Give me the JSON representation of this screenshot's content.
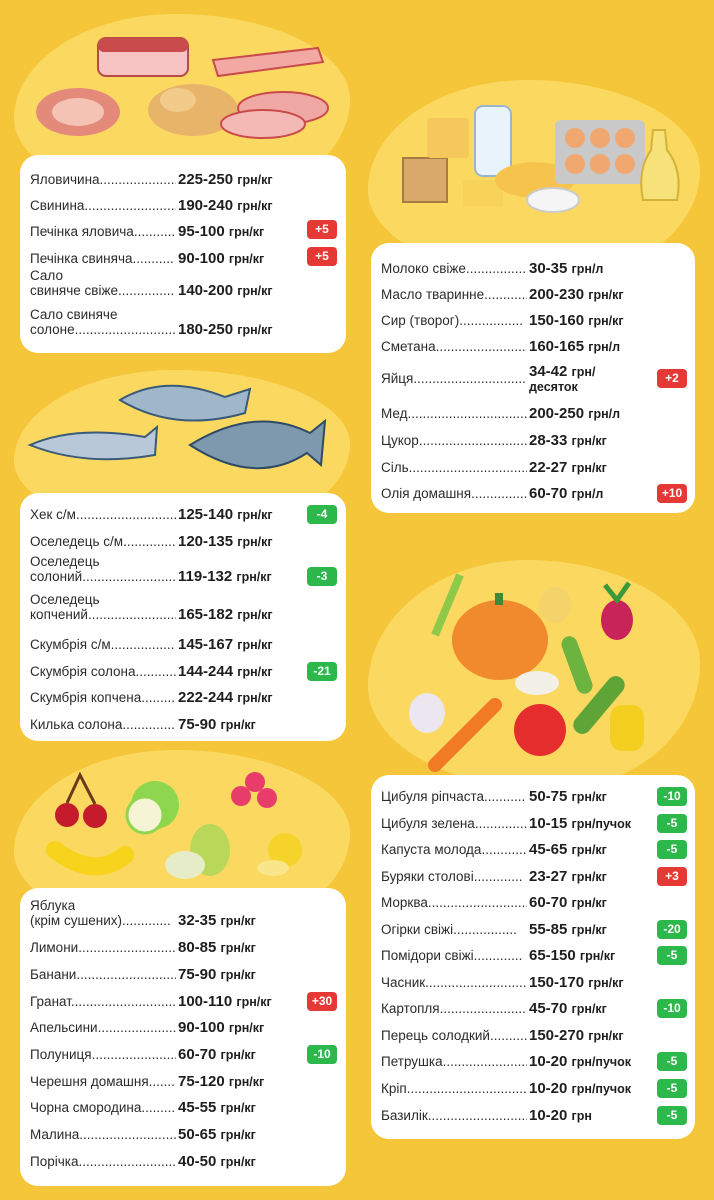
{
  "colors": {
    "background": "#f5c63a",
    "blob": "#fbd961",
    "badge_up": "#e53935",
    "badge_down": "#2db84b"
  },
  "meat": [
    {
      "name": "Яловичина",
      "price": "225-250",
      "unit": "грн/кг",
      "badge": ""
    },
    {
      "name": "Свинина",
      "price": "190-240",
      "unit": "грн/кг",
      "badge": ""
    },
    {
      "name": "Печінка яловича",
      "price": "95-100",
      "unit": "грн/кг",
      "badge": "+5"
    },
    {
      "name": "Печінка свиняча",
      "price": "90-100",
      "unit": "грн/кг",
      "badge": "+5"
    },
    {
      "name_line1": "Сало",
      "name": "свиняче свіже",
      "price": "140-200",
      "unit": "грн/кг",
      "badge": ""
    },
    {
      "name_line1": "Сало свиняче",
      "name": "солоне",
      "price": "180-250",
      "unit": "грн/кг",
      "badge": ""
    }
  ],
  "fish": [
    {
      "name": "Хек с/м",
      "price": "125-140",
      "unit": "грн/кг",
      "badge": "-4"
    },
    {
      "name": "Оселедець с/м",
      "price": "120-135",
      "unit": "грн/кг",
      "badge": ""
    },
    {
      "name_line1": "Оселедець",
      "name": "солоний",
      "price": "119-132",
      "unit": "грн/кг",
      "badge": "-3"
    },
    {
      "name_line1": "Оселедець",
      "name": "копчений",
      "price": "165-182",
      "unit": "грн/кг",
      "badge": ""
    },
    {
      "name": "Скумбрія с/м",
      "price": "145-167",
      "unit": "грн/кг",
      "badge": ""
    },
    {
      "name": "Скумбрія солона",
      "price": "144-244",
      "unit": "грн/кг",
      "badge": "-21"
    },
    {
      "name": "Скумбрія копчена",
      "price": "222-244",
      "unit": "грн/кг",
      "badge": ""
    },
    {
      "name": "Килька солона",
      "price": "75-90",
      "unit": "грн/кг",
      "badge": ""
    }
  ],
  "fruits": [
    {
      "name_line1": "Яблука",
      "name": "(крім сушених)",
      "price": "32-35",
      "unit": "грн/кг",
      "badge": ""
    },
    {
      "name": "Лимони",
      "price": "80-85",
      "unit": "грн/кг",
      "badge": ""
    },
    {
      "name": "Банани",
      "price": "75-90",
      "unit": "грн/кг",
      "badge": ""
    },
    {
      "name": "Гранат",
      "price": "100-110",
      "unit": "грн/кг",
      "badge": "+30"
    },
    {
      "name": "Апельсини",
      "price": "90-100",
      "unit": "грн/кг",
      "badge": ""
    },
    {
      "name": "Полуниця",
      "price": "60-70",
      "unit": "грн/кг",
      "badge": "-10"
    },
    {
      "name": "Черешня домашня",
      "price": "75-120",
      "unit": "грн/кг",
      "badge": ""
    },
    {
      "name": "Чорна смородина",
      "price": "45-55",
      "unit": "грн/кг",
      "badge": ""
    },
    {
      "name": "Малина",
      "price": "50-65",
      "unit": "грн/кг",
      "badge": ""
    },
    {
      "name": "Порічка",
      "price": "40-50",
      "unit": "грн/кг",
      "badge": ""
    }
  ],
  "dairy": [
    {
      "name": "Молоко свіже",
      "price": "30-35",
      "unit": "грн/л",
      "badge": ""
    },
    {
      "name": "Масло тваринне",
      "price": "200-230",
      "unit": "грн/кг",
      "badge": ""
    },
    {
      "name": "Сир (творог)",
      "price": "150-160",
      "unit": "грн/кг",
      "badge": ""
    },
    {
      "name": "Сметана",
      "price": "160-165",
      "unit": "грн/л",
      "badge": ""
    },
    {
      "name": "Яйця",
      "price": "34-42",
      "unit": "грн/",
      "unit2": "десяток",
      "badge": "+2"
    },
    {
      "name": "Мед",
      "price": "200-250",
      "unit": "грн/л",
      "badge": ""
    },
    {
      "name": "Цукор",
      "price": "28-33",
      "unit": "грн/кг",
      "badge": ""
    },
    {
      "name": "Сіль",
      "price": "22-27",
      "unit": "грн/кг",
      "badge": ""
    },
    {
      "name": "Олія домашня",
      "price": "60-70",
      "unit": "грн/л",
      "badge": "+10"
    }
  ],
  "vegetables": [
    {
      "name": "Цибуля ріпчаста",
      "price": "50-75",
      "unit": "грн/кг",
      "badge": "-10"
    },
    {
      "name": "Цибуля зелена",
      "price": "10-15",
      "unit": "грн/пучок",
      "badge": "-5"
    },
    {
      "name": "Капуста молода",
      "price": "45-65",
      "unit": "грн/кг",
      "badge": "-5"
    },
    {
      "name": "Буряки столові",
      "price": "23-27",
      "unit": "грн/кг",
      "badge": "+3"
    },
    {
      "name": "Морква",
      "price": "60-70",
      "unit": "грн/кг",
      "badge": ""
    },
    {
      "name": "Огірки свіжі",
      "price": "55-85",
      "unit": "грн/кг",
      "badge": "-20"
    },
    {
      "name": "Помідори свіжі",
      "price": "65-150",
      "unit": "грн/кг",
      "badge": "-5"
    },
    {
      "name": "Часник",
      "price": "150-170",
      "unit": "грн/кг",
      "badge": ""
    },
    {
      "name": "Картопля",
      "price": "45-70",
      "unit": "грн/кг",
      "badge": "-10"
    },
    {
      "name": "Перець солодкий",
      "price": "150-270",
      "unit": "грн/кг",
      "badge": ""
    },
    {
      "name": "Петрушка",
      "price": "10-20",
      "unit": "грн/пучок",
      "badge": "-5"
    },
    {
      "name": "Кріп",
      "price": "10-20",
      "unit": "грн/пучок",
      "badge": "-5"
    },
    {
      "name": "Базилік",
      "price": "10-20",
      "unit": "грн",
      "badge": "-5"
    }
  ]
}
